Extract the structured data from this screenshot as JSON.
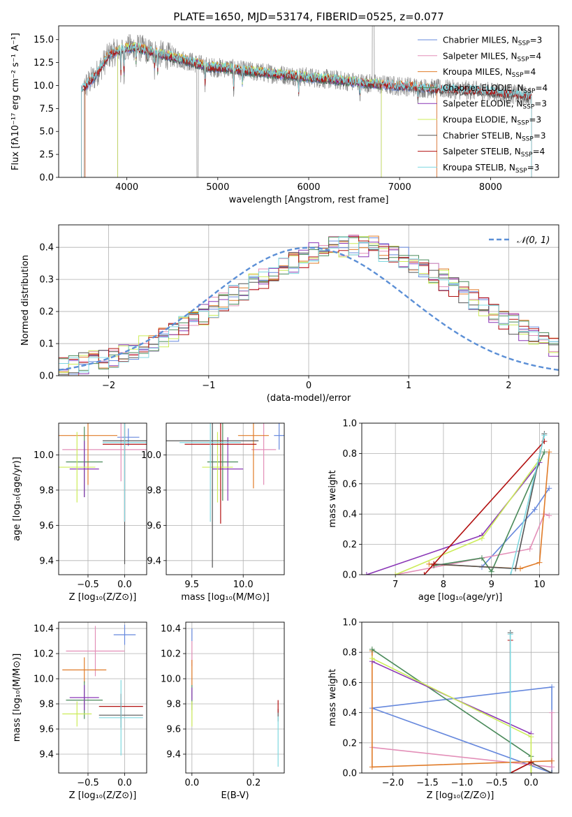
{
  "figure": {
    "width_label": "",
    "height_label": ""
  },
  "colors": {
    "chabrier_miles": "#6688dd",
    "salpeter_miles": "#e38fb8",
    "kroupa_miles": "#e07b28",
    "chabrier_elodie": "#4a8a5a",
    "salpeter_elodie": "#8a36b6",
    "kroupa_elodie": "#ccec58",
    "chabrier_stelib": "#555555",
    "salpeter_stelib": "#b21010",
    "kroupa_stelib": "#7fd8e0",
    "gaussian": "#5b8fd6",
    "grid": "#b0b0b0"
  },
  "chart_data": [
    {
      "id": "spectrum",
      "type": "line",
      "title": "PLATE=1650, MJD=53174, FIBERID=0525, z=0.077",
      "xlabel": "wavelength [Angstrom, rest frame]",
      "ylabel": "Flux [fλ10⁻¹⁷ erg cm⁻² s⁻¹ A⁻¹]",
      "xlim": [
        3250,
        8750
      ],
      "ylim": [
        0,
        16.5
      ],
      "xticks": [
        4000,
        5000,
        6000,
        7000,
        8000
      ],
      "yticks": [
        0.0,
        2.5,
        5.0,
        7.5,
        10.0,
        12.5,
        15.0
      ],
      "grid": false,
      "legend_position": "top-right",
      "legend": [
        {
          "label": "Chabrier MILES, N",
          "sub": "SSP",
          "val": "=3",
          "color_key": "chabrier_miles"
        },
        {
          "label": "Salpeter MILES, N",
          "sub": "SSP",
          "val": "=4",
          "color_key": "salpeter_miles"
        },
        {
          "label": "Kroupa MILES, N",
          "sub": "SSP",
          "val": "=4",
          "color_key": "kroupa_miles"
        },
        {
          "label": "Chabrier ELODIE, N",
          "sub": "SSP",
          "val": "=4",
          "color_key": "chabrier_elodie"
        },
        {
          "label": "Salpeter ELODIE, N",
          "sub": "SSP",
          "val": "=3",
          "color_key": "salpeter_elodie"
        },
        {
          "label": "Kroupa ELODIE, N",
          "sub": "SSP",
          "val": "=3",
          "color_key": "kroupa_elodie"
        },
        {
          "label": "Chabrier STELIB, N",
          "sub": "SSP",
          "val": "=3",
          "color_key": "chabrier_stelib"
        },
        {
          "label": "Salpeter STELIB, N",
          "sub": "SSP",
          "val": "=4",
          "color_key": "salpeter_stelib"
        },
        {
          "label": "Kroupa STELIB, N",
          "sub": "SSP",
          "val": "=3",
          "color_key": "kroupa_stelib"
        }
      ],
      "continuum": [
        [
          3500,
          9.5
        ],
        [
          3650,
          11.0
        ],
        [
          3800,
          13.3
        ],
        [
          3950,
          14.0
        ],
        [
          4100,
          14.2
        ],
        [
          4300,
          13.6
        ],
        [
          4500,
          13.1
        ],
        [
          4700,
          12.6
        ],
        [
          4900,
          12.0
        ],
        [
          5100,
          11.9
        ],
        [
          5300,
          11.6
        ],
        [
          5500,
          11.4
        ],
        [
          5700,
          11.2
        ],
        [
          5900,
          11.0
        ],
        [
          6100,
          10.8
        ],
        [
          6300,
          10.6
        ],
        [
          6500,
          10.4
        ],
        [
          6700,
          10.2
        ],
        [
          6900,
          10.0
        ],
        [
          7100,
          9.9
        ],
        [
          7300,
          9.7
        ],
        [
          7500,
          9.6
        ],
        [
          7700,
          9.5
        ],
        [
          7900,
          9.4
        ],
        [
          8100,
          9.2
        ],
        [
          8300,
          9.0
        ],
        [
          8450,
          8.8
        ]
      ],
      "absorption": [
        [
          3934,
          3.0
        ],
        [
          3968,
          3.4
        ],
        [
          4102,
          1.8
        ],
        [
          4227,
          1.2
        ],
        [
          4304,
          1.6
        ],
        [
          4340,
          2.0
        ],
        [
          4861,
          2.2
        ],
        [
          5175,
          2.4
        ],
        [
          5270,
          1.4
        ],
        [
          5890,
          1.8
        ],
        [
          6563,
          1.6
        ],
        [
          7200,
          1.0
        ]
      ],
      "model_cutoffs": [
        {
          "key": "chabrier_miles",
          "start": 3540,
          "end": 7410
        },
        {
          "key": "salpeter_miles",
          "start": 3540,
          "end": 7410
        },
        {
          "key": "kroupa_miles",
          "start": 3540,
          "end": 7410
        },
        {
          "key": "chabrier_elodie",
          "start": 3900,
          "end": 6800
        },
        {
          "key": "salpeter_elodie",
          "start": 3900,
          "end": 6800
        },
        {
          "key": "kroupa_elodie",
          "start": 3900,
          "end": 6800
        },
        {
          "key": "chabrier_stelib",
          "start": 3500,
          "end": 8450
        },
        {
          "key": "salpeter_stelib",
          "start": 3500,
          "end": 8450
        },
        {
          "key": "kroupa_stelib",
          "start": 3500,
          "end": 8450
        }
      ]
    },
    {
      "id": "residuals",
      "type": "line",
      "xlabel": "(data-model)/error",
      "ylabel": "Normed distribution",
      "xlim": [
        -2.5,
        2.5
      ],
      "ylim": [
        0,
        0.47
      ],
      "xticks": [
        -2,
        -1,
        0,
        1,
        2
      ],
      "xtick_labels": [
        "−2",
        "−1",
        "0",
        "1",
        "2"
      ],
      "yticks": [
        0.0,
        0.1,
        0.2,
        0.3,
        0.4
      ],
      "grid": true,
      "legend_position": "top-right",
      "legend_label": "𝒩(0, 1)",
      "bin_width": 0.1,
      "bin_start": -2.5,
      "base_distribution": [
        0.03,
        0.03,
        0.04,
        0.05,
        0.05,
        0.06,
        0.07,
        0.08,
        0.09,
        0.11,
        0.12,
        0.13,
        0.15,
        0.17,
        0.19,
        0.21,
        0.23,
        0.25,
        0.27,
        0.29,
        0.3,
        0.32,
        0.34,
        0.35,
        0.37,
        0.38,
        0.39,
        0.4,
        0.4,
        0.41,
        0.4,
        0.4,
        0.39,
        0.38,
        0.37,
        0.35,
        0.34,
        0.32,
        0.3,
        0.28,
        0.26,
        0.24,
        0.22,
        0.2,
        0.18,
        0.16,
        0.14,
        0.13,
        0.11,
        0.09,
        0.08,
        0.07,
        0.06,
        0.05,
        0.04,
        0.03
      ]
    },
    {
      "id": "age_vs_z",
      "type": "scatter",
      "xlabel": "Z [log₁₀(Z/Z⊙)]",
      "ylabel": "age  [log₁₀(age/yr)]",
      "xlim": [
        -0.9,
        0.3
      ],
      "ylim": [
        9.32,
        10.18
      ],
      "xticks": [
        -0.5,
        0.0
      ],
      "xtick_labels": [
        "−0.5",
        "0.0"
      ],
      "yticks": [
        9.4,
        9.6,
        9.8,
        10.0
      ],
      "grid": true,
      "points": [
        {
          "key": "chabrier_miles",
          "x": 0.05,
          "y": 10.1,
          "xerr": 0.15,
          "yerr": 0.05
        },
        {
          "key": "salpeter_miles",
          "x": -0.05,
          "y": 10.03,
          "xerr": 0.8,
          "yerr": 0.18
        },
        {
          "key": "kroupa_miles",
          "x": -0.5,
          "y": 10.11,
          "xerr": 0.4,
          "yerr": 0.28
        },
        {
          "key": "chabrier_elodie",
          "x": -0.55,
          "y": 9.96,
          "xerr": 0.25,
          "yerr": 0.2
        },
        {
          "key": "salpeter_elodie",
          "x": -0.55,
          "y": 9.92,
          "xerr": 0.2,
          "yerr": 0.16
        },
        {
          "key": "kroupa_elodie",
          "x": -0.65,
          "y": 9.93,
          "xerr": 0.25,
          "yerr": 0.2
        },
        {
          "key": "chabrier_stelib",
          "x": 0.0,
          "y": 10.08,
          "xerr": 0.3,
          "yerr": 0.7
        },
        {
          "key": "salpeter_stelib",
          "x": 0.0,
          "y": 10.06,
          "xerr": 0.3,
          "yerr": 0.44
        },
        {
          "key": "kroupa_stelib",
          "x": 0.0,
          "y": 10.07,
          "xerr": 0.3,
          "yerr": 0.45
        }
      ]
    },
    {
      "id": "age_vs_mass",
      "type": "scatter",
      "xlabel": "mass [log₁₀(M/M⊙)]",
      "ylabel": "",
      "xlim": [
        9.25,
        10.4
      ],
      "ylim": [
        9.32,
        10.18
      ],
      "xticks": [
        9.5,
        10.0
      ],
      "xtick_labels": [
        "9.5",
        "10.0"
      ],
      "yticks": [
        9.4,
        9.6,
        9.8,
        10.0
      ],
      "grid": true,
      "points": [
        {
          "key": "chabrier_miles",
          "x": 10.35,
          "y": 10.11,
          "xerr": 0.05,
          "yerr": 0.08
        },
        {
          "key": "salpeter_miles",
          "x": 10.2,
          "y": 10.03,
          "xerr": 0.12,
          "yerr": 0.2
        },
        {
          "key": "kroupa_miles",
          "x": 10.1,
          "y": 10.11,
          "xerr": 0.15,
          "yerr": 0.3
        },
        {
          "key": "chabrier_elodie",
          "x": 9.8,
          "y": 9.96,
          "xerr": 0.15,
          "yerr": 0.22
        },
        {
          "key": "salpeter_elodie",
          "x": 9.85,
          "y": 9.92,
          "xerr": 0.15,
          "yerr": 0.18
        },
        {
          "key": "kroupa_elodie",
          "x": 9.75,
          "y": 9.93,
          "xerr": 0.15,
          "yerr": 0.2
        },
        {
          "key": "chabrier_stelib",
          "x": 9.7,
          "y": 10.08,
          "xerr": 0.45,
          "yerr": 0.72
        },
        {
          "key": "salpeter_stelib",
          "x": 9.78,
          "y": 10.06,
          "xerr": 0.35,
          "yerr": 0.45
        },
        {
          "key": "kroupa_stelib",
          "x": 9.68,
          "y": 10.07,
          "xerr": 0.3,
          "yerr": 0.45
        }
      ]
    },
    {
      "id": "weight_vs_age",
      "type": "line",
      "xlabel": "age  [log₁₀(age/yr)]",
      "ylabel": "mass weight",
      "xlim": [
        6.3,
        10.4
      ],
      "ylim": [
        0,
        1.0
      ],
      "xticks": [
        7,
        8,
        9,
        10
      ],
      "yticks": [
        0.0,
        0.2,
        0.4,
        0.6,
        0.8,
        1.0
      ],
      "grid": true,
      "series": [
        {
          "key": "chabrier_miles",
          "x": [
            8.8,
            9.9,
            10.2
          ],
          "y": [
            0.05,
            0.43,
            0.57
          ]
        },
        {
          "key": "salpeter_miles",
          "x": [
            7.0,
            9.8,
            10.1,
            10.2
          ],
          "y": [
            0.0,
            0.17,
            0.4,
            0.39
          ]
        },
        {
          "key": "kroupa_miles",
          "x": [
            7.7,
            9.6,
            10.0,
            10.2
          ],
          "y": [
            0.07,
            0.04,
            0.08,
            0.81
          ]
        },
        {
          "key": "chabrier_elodie",
          "x": [
            7.8,
            8.8,
            9.0,
            10.1
          ],
          "y": [
            0.06,
            0.11,
            0.02,
            0.81
          ]
        },
        {
          "key": "salpeter_elodie",
          "x": [
            6.4,
            8.8,
            10.0
          ],
          "y": [
            0.0,
            0.26,
            0.74
          ]
        },
        {
          "key": "kroupa_elodie",
          "x": [
            7.0,
            8.8,
            10.0
          ],
          "y": [
            0.0,
            0.24,
            0.76
          ]
        },
        {
          "key": "chabrier_stelib",
          "x": [
            7.8,
            9.5,
            10.1
          ],
          "y": [
            0.07,
            0.04,
            0.93
          ]
        },
        {
          "key": "salpeter_stelib",
          "x": [
            7.6,
            7.8,
            10.1
          ],
          "y": [
            0.0,
            0.07,
            0.88
          ]
        },
        {
          "key": "kroupa_stelib",
          "x": [
            9.4,
            10.1
          ],
          "y": [
            0.0,
            0.92
          ]
        }
      ]
    },
    {
      "id": "mass_vs_z",
      "type": "scatter",
      "xlabel": "Z [log₁₀(Z/Z⊙)]",
      "ylabel": "mass [log₁₀(M/M⊙)]",
      "xlim": [
        -0.9,
        0.3
      ],
      "ylim": [
        9.25,
        10.45
      ],
      "xticks": [
        -0.5,
        0.0
      ],
      "xtick_labels": [
        "−0.5",
        "0.0"
      ],
      "yticks": [
        9.4,
        9.6,
        9.8,
        10.0,
        10.2,
        10.4
      ],
      "grid": true,
      "points": [
        {
          "key": "chabrier_miles",
          "x": 0.0,
          "y": 10.35,
          "xerr": 0.15,
          "yerr": 0.08
        },
        {
          "key": "salpeter_miles",
          "x": -0.4,
          "y": 10.22,
          "xerr": 0.4,
          "yerr": 0.2
        },
        {
          "key": "kroupa_miles",
          "x": -0.55,
          "y": 10.07,
          "xerr": 0.3,
          "yerr": 0.1
        },
        {
          "key": "chabrier_elodie",
          "x": -0.55,
          "y": 9.83,
          "xerr": 0.25,
          "yerr": 0.15
        },
        {
          "key": "salpeter_elodie",
          "x": -0.55,
          "y": 9.85,
          "xerr": 0.2,
          "yerr": 0.1
        },
        {
          "key": "kroupa_elodie",
          "x": -0.65,
          "y": 9.72,
          "xerr": 0.2,
          "yerr": 0.1
        },
        {
          "key": "chabrier_stelib",
          "x": -0.05,
          "y": 9.71,
          "xerr": 0.3,
          "yerr": 0.1
        },
        {
          "key": "salpeter_stelib",
          "x": -0.05,
          "y": 9.78,
          "xerr": 0.3,
          "yerr": 0.1
        },
        {
          "key": "kroupa_stelib",
          "x": -0.05,
          "y": 9.69,
          "xerr": 0.3,
          "yerr": 0.3
        }
      ]
    },
    {
      "id": "mass_vs_ebv",
      "type": "scatter",
      "xlabel": "E(B-V)",
      "ylabel": "",
      "xlim": [
        -0.02,
        0.3
      ],
      "ylim": [
        9.25,
        10.45
      ],
      "xticks": [
        0.0,
        0.2
      ],
      "xtick_labels": [
        "0.0",
        "0.2"
      ],
      "yticks": [
        9.4,
        9.6,
        9.8,
        10.0,
        10.2,
        10.4
      ],
      "grid": true,
      "points": [
        {
          "key": "chabrier_miles",
          "x": 0.0,
          "y": 10.35,
          "xerr": 0.0,
          "yerr": 0.05
        },
        {
          "key": "salpeter_miles",
          "x": 0.0,
          "y": 10.2,
          "xerr": 0.0,
          "yerr": 0.1
        },
        {
          "key": "kroupa_miles",
          "x": 0.0,
          "y": 10.05,
          "xerr": 0.0,
          "yerr": 0.1
        },
        {
          "key": "chabrier_elodie",
          "x": 0.0,
          "y": 9.85,
          "xerr": 0.0,
          "yerr": 0.1
        },
        {
          "key": "salpeter_elodie",
          "x": 0.0,
          "y": 9.88,
          "xerr": 0.0,
          "yerr": 0.05
        },
        {
          "key": "kroupa_elodie",
          "x": 0.0,
          "y": 9.72,
          "xerr": 0.0,
          "yerr": 0.1
        },
        {
          "key": "chabrier_stelib",
          "x": 0.28,
          "y": 9.71,
          "xerr": 0.0,
          "yerr": 0.05
        },
        {
          "key": "salpeter_stelib",
          "x": 0.28,
          "y": 9.78,
          "xerr": 0.0,
          "yerr": 0.05
        },
        {
          "key": "kroupa_stelib",
          "x": 0.28,
          "y": 9.5,
          "xerr": 0.0,
          "yerr": 0.2
        }
      ]
    },
    {
      "id": "weight_vs_z",
      "type": "line",
      "xlabel": "Z [log₁₀(Z/Z⊙)]",
      "ylabel": "mass weight",
      "xlim": [
        -2.45,
        0.4
      ],
      "ylim": [
        0,
        1.0
      ],
      "xticks": [
        -2.0,
        -1.5,
        -1.0,
        -0.5,
        0.0
      ],
      "xtick_labels": [
        "−2.0",
        "−1.5",
        "−1.0",
        "−0.5",
        "0.0"
      ],
      "yticks": [
        0.0,
        0.2,
        0.4,
        0.6,
        0.8,
        1.0
      ],
      "grid": true,
      "series": [
        {
          "key": "chabrier_miles",
          "x": [
            0.3,
            0.3,
            -2.3,
            0.3
          ],
          "y": [
            0.0,
            0.57,
            0.43,
            0.0
          ]
        },
        {
          "key": "salpeter_miles",
          "x": [
            -2.3,
            0.3,
            0.3
          ],
          "y": [
            0.17,
            0.04,
            0.4
          ]
        },
        {
          "key": "kroupa_miles",
          "x": [
            -2.3,
            -2.3,
            0.3
          ],
          "y": [
            0.81,
            0.04,
            0.08
          ]
        },
        {
          "key": "chabrier_elodie",
          "x": [
            -2.3,
            0.0,
            0.0
          ],
          "y": [
            0.82,
            0.11,
            0.0
          ]
        },
        {
          "key": "salpeter_elodie",
          "x": [
            -2.3,
            0.0
          ],
          "y": [
            0.74,
            0.26
          ]
        },
        {
          "key": "kroupa_elodie",
          "x": [
            -2.3,
            0.0,
            0.0
          ],
          "y": [
            0.76,
            0.24,
            0.0
          ]
        },
        {
          "key": "chabrier_stelib",
          "x": [
            -0.3,
            -0.3,
            0.0,
            0.3
          ],
          "y": [
            0.93,
            0.0,
            0.07,
            0.0
          ]
        },
        {
          "key": "salpeter_stelib",
          "x": [
            -0.3,
            -0.3,
            0.0
          ],
          "y": [
            0.88,
            0.0,
            0.07
          ]
        },
        {
          "key": "kroupa_stelib",
          "x": [
            -0.3,
            -0.3
          ],
          "y": [
            0.0,
            0.92
          ]
        }
      ]
    }
  ]
}
